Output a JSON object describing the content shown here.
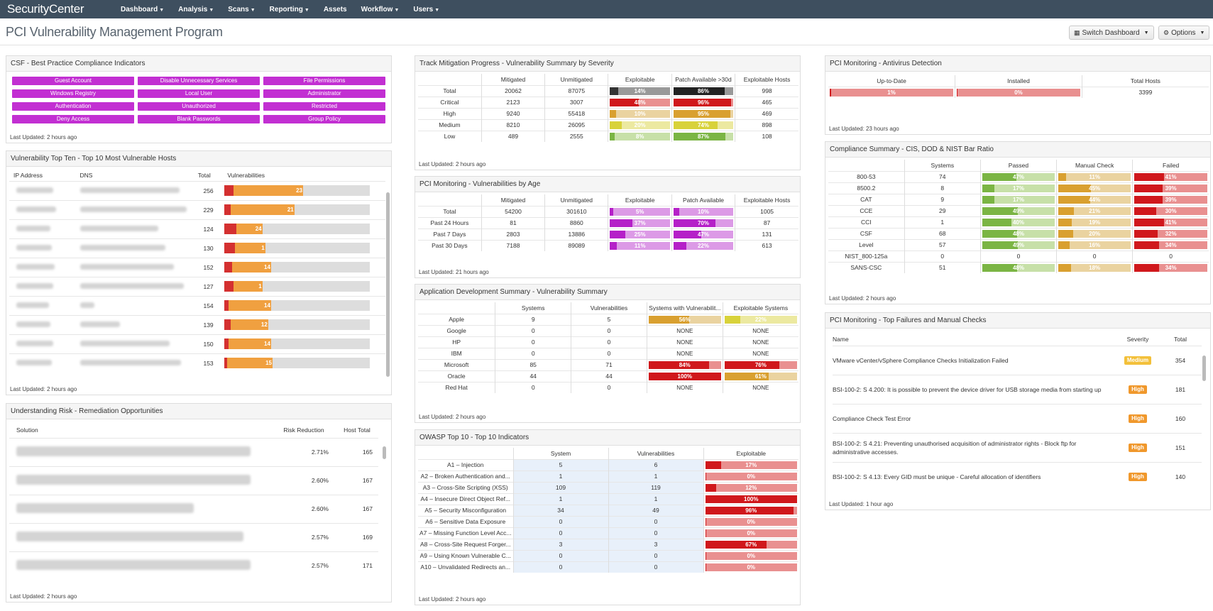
{
  "app": {
    "logo": "SecurityCenter"
  },
  "nav": [
    {
      "label": "Dashboard",
      "caret": true
    },
    {
      "label": "Analysis",
      "caret": true
    },
    {
      "label": "Scans",
      "caret": true
    },
    {
      "label": "Reporting",
      "caret": true
    },
    {
      "label": "Assets",
      "caret": false
    },
    {
      "label": "Workflow",
      "caret": true
    },
    {
      "label": "Users",
      "caret": true
    }
  ],
  "page": {
    "title": "PCI Vulnerability Management Program"
  },
  "toolbar": {
    "switch_label": "Switch Dashboard",
    "options_label": "Options"
  },
  "colors": {
    "magenta": "#c22fd2",
    "red": "#d0181c",
    "orange": "#f0a040",
    "green": "#7bb544"
  },
  "csf": {
    "title": "CSF - Best Practice Compliance Indicators",
    "buttons": [
      "Guest Account",
      "Disable Unnecessary Services",
      "File Permissions",
      "Windows Registry",
      "Local User",
      "Administrator",
      "Authentication",
      "Unauthorized",
      "Restricted",
      "Deny Access",
      "Blank Passwords",
      "Group Policy"
    ],
    "updated": "Last Updated: 2 hours ago"
  },
  "topten": {
    "title": "Vulnerability Top Ten - Top 10 Most Vulnerable Hosts",
    "headers": [
      "IP Address",
      "DNS",
      "Total",
      "Vulnerabilities"
    ],
    "rows": [
      {
        "total": "256",
        "crit": 0.06,
        "high": 0.48,
        "label": "23"
      },
      {
        "total": "229",
        "crit": 0.04,
        "high": 0.44,
        "label": "21"
      },
      {
        "total": "124",
        "crit": 0.08,
        "high": 0.18,
        "label": "24"
      },
      {
        "total": "130",
        "crit": 0.07,
        "high": 0.21,
        "label": "1"
      },
      {
        "total": "152",
        "crit": 0.05,
        "high": 0.27,
        "label": "14"
      },
      {
        "total": "127",
        "crit": 0.06,
        "high": 0.2,
        "label": "1"
      },
      {
        "total": "154",
        "crit": 0.03,
        "high": 0.29,
        "label": "14"
      },
      {
        "total": "139",
        "crit": 0.04,
        "high": 0.26,
        "label": "12"
      },
      {
        "total": "150",
        "crit": 0.03,
        "high": 0.29,
        "label": "14"
      },
      {
        "total": "153",
        "crit": 0.02,
        "high": 0.31,
        "label": "15"
      }
    ],
    "updated": "Last Updated: 2 hours ago"
  },
  "risk": {
    "title": "Understanding Risk - Remediation Opportunities",
    "headers": [
      "Solution",
      "Risk Reduction",
      "Host Total"
    ],
    "rows": [
      {
        "reduction": "2.71%",
        "hosts": "165"
      },
      {
        "reduction": "2.60%",
        "hosts": "167"
      },
      {
        "reduction": "2.60%",
        "hosts": "167"
      },
      {
        "reduction": "2.57%",
        "hosts": "169"
      },
      {
        "reduction": "2.57%",
        "hosts": "171"
      }
    ],
    "updated": "Last Updated: 2 hours ago"
  },
  "mitigation": {
    "title": "Track Mitigation Progress - Vulnerability Summary by Severity",
    "headers": [
      "",
      "Mitigated",
      "Unmitigated",
      "Exploitable",
      "Patch Available >30d",
      "Exploitable Hosts"
    ],
    "rows": [
      {
        "name": "Total",
        "mit": "20062",
        "unmit": "87075",
        "exp": {
          "v": 14,
          "l": "14%",
          "c": "#333",
          "bg": "#999"
        },
        "patch": {
          "v": 86,
          "l": "86%",
          "c": "#222",
          "bg": "#999"
        },
        "hosts": "998"
      },
      {
        "name": "Critical",
        "mit": "2123",
        "unmit": "3007",
        "exp": {
          "v": 48,
          "l": "48%",
          "c": "#d0181c",
          "bg": "#e99090"
        },
        "patch": {
          "v": 96,
          "l": "96%",
          "c": "#d0181c",
          "bg": "#e99090"
        },
        "hosts": "465"
      },
      {
        "name": "High",
        "mit": "9240",
        "unmit": "55418",
        "exp": {
          "v": 10,
          "l": "10%",
          "c": "#d9a030",
          "bg": "#ead3a0"
        },
        "patch": {
          "v": 95,
          "l": "95%",
          "c": "#d9a030",
          "bg": "#ead3a0"
        },
        "hosts": "469"
      },
      {
        "name": "Medium",
        "mit": "8210",
        "unmit": "26095",
        "exp": {
          "v": 20,
          "l": "20%",
          "c": "#d8d23a",
          "bg": "#ece9a0"
        },
        "patch": {
          "v": 74,
          "l": "74%",
          "c": "#d8d23a",
          "bg": "#ece9a0"
        },
        "hosts": "898"
      },
      {
        "name": "Low",
        "mit": "489",
        "unmit": "2555",
        "exp": {
          "v": 8,
          "l": "8%",
          "c": "#7bb544",
          "bg": "#c7e0a8"
        },
        "patch": {
          "v": 87,
          "l": "87%",
          "c": "#7bb544",
          "bg": "#c7e0a8"
        },
        "hosts": "108"
      }
    ],
    "updated": "Last Updated: 2 hours ago"
  },
  "age": {
    "title": "PCI Monitoring - Vulnerabilities by Age",
    "headers": [
      "",
      "Mitigated",
      "Unmitigated",
      "Exploitable",
      "Patch Available",
      "Exploitable Hosts"
    ],
    "rows": [
      {
        "name": "Total",
        "mit": "54200",
        "unmit": "301610",
        "exp": {
          "v": 5,
          "l": "5%"
        },
        "patch": {
          "v": 10,
          "l": "10%"
        },
        "hosts": "1005"
      },
      {
        "name": "Past 24 Hours",
        "mit": "81",
        "unmit": "8860",
        "exp": {
          "v": 37,
          "l": "37%"
        },
        "patch": {
          "v": 70,
          "l": "70%"
        },
        "hosts": "87"
      },
      {
        "name": "Past 7 Days",
        "mit": "2803",
        "unmit": "13886",
        "exp": {
          "v": 25,
          "l": "25%"
        },
        "patch": {
          "v": 47,
          "l": "47%"
        },
        "hosts": "131"
      },
      {
        "name": "Past 30 Days",
        "mit": "7188",
        "unmit": "89089",
        "exp": {
          "v": 11,
          "l": "11%"
        },
        "patch": {
          "v": 22,
          "l": "22%"
        },
        "hosts": "613"
      }
    ],
    "updated": "Last Updated: 21 hours ago"
  },
  "appdev": {
    "title": "Application Development Summary - Vulnerability Summary",
    "headers": [
      "",
      "Systems",
      "Vulnerabilities",
      "Systems with Vulnerabilit...",
      "Exploitable Systems"
    ],
    "rows": [
      {
        "name": "Apple",
        "sys": "9",
        "vul": "5",
        "sv": {
          "v": 56,
          "l": "56%",
          "c": "#d9a030",
          "bg": "#ead3a0"
        },
        "es": {
          "v": 22,
          "l": "22%",
          "c": "#d8d23a",
          "bg": "#ece9a0"
        }
      },
      {
        "name": "Google",
        "sys": "0",
        "vul": "0",
        "sv": null,
        "es": null
      },
      {
        "name": "HP",
        "sys": "0",
        "vul": "0",
        "sv": null,
        "es": null
      },
      {
        "name": "IBM",
        "sys": "0",
        "vul": "0",
        "sv": null,
        "es": null
      },
      {
        "name": "Microsoft",
        "sys": "85",
        "vul": "71",
        "sv": {
          "v": 84,
          "l": "84%",
          "c": "#d0181c",
          "bg": "#e99090"
        },
        "es": {
          "v": 76,
          "l": "76%",
          "c": "#d0181c",
          "bg": "#e99090"
        }
      },
      {
        "name": "Oracle",
        "sys": "44",
        "vul": "44",
        "sv": {
          "v": 100,
          "l": "100%",
          "c": "#d0181c",
          "bg": "#e99090"
        },
        "es": {
          "v": 61,
          "l": "61%",
          "c": "#d9a030",
          "bg": "#ead3a0"
        }
      },
      {
        "name": "Red Hat",
        "sys": "0",
        "vul": "0",
        "sv": null,
        "es": null
      }
    ],
    "none_label": "NONE",
    "updated": "Last Updated: 2 hours ago"
  },
  "owasp": {
    "title": "OWASP Top 10 - Top 10 Indicators",
    "headers": [
      "",
      "System",
      "Vulnerabilities",
      "Exploitable"
    ],
    "rows": [
      {
        "name": "A1 – Injection",
        "sys": "5",
        "vul": "6",
        "v": 17,
        "l": "17%"
      },
      {
        "name": "A2 – Broken Authentication and...",
        "sys": "1",
        "vul": "1",
        "v": 0,
        "l": "0%"
      },
      {
        "name": "A3 – Cross-Site Scripting (XSS)",
        "sys": "109",
        "vul": "119",
        "v": 12,
        "l": "12%"
      },
      {
        "name": "A4 – Insecure Direct Object Ref...",
        "sys": "1",
        "vul": "1",
        "v": 100,
        "l": "100%"
      },
      {
        "name": "A5 – Security Misconfiguration",
        "sys": "34",
        "vul": "49",
        "v": 96,
        "l": "96%"
      },
      {
        "name": "A6 – Sensitive Data Exposure",
        "sys": "0",
        "vul": "0",
        "v": 0,
        "l": "0%"
      },
      {
        "name": "A7 – Missing Function Level Acc...",
        "sys": "0",
        "vul": "0",
        "v": 0,
        "l": "0%"
      },
      {
        "name": "A8 – Cross-Site Request Forger...",
        "sys": "3",
        "vul": "3",
        "v": 67,
        "l": "67%"
      },
      {
        "name": "A9 – Using Known Vulnerable C...",
        "sys": "0",
        "vul": "0",
        "v": 0,
        "l": "0%"
      },
      {
        "name": "A10 – Unvalidated Redirects an...",
        "sys": "0",
        "vul": "0",
        "v": 0,
        "l": "0%"
      }
    ],
    "updated": "Last Updated: 2 hours ago"
  },
  "antivirus": {
    "title": "PCI Monitoring - Antivirus Detection",
    "headers": [
      "Up-to-Date",
      "Installed",
      "Total Hosts"
    ],
    "uptodate": {
      "v": 1,
      "l": "1%"
    },
    "installed": {
      "v": 0,
      "l": "0%"
    },
    "total": "3399",
    "updated": "Last Updated: 23 hours ago"
  },
  "compliance": {
    "title": "Compliance Summary - CIS, DOD & NIST Bar Ratio",
    "headers": [
      "",
      "Systems",
      "Passed",
      "Manual Check",
      "Failed"
    ],
    "rows": [
      {
        "name": "800-53",
        "sys": "74",
        "p": {
          "v": 47,
          "l": "47%"
        },
        "m": {
          "v": 11,
          "l": "11%"
        },
        "f": {
          "v": 41,
          "l": "41%"
        }
      },
      {
        "name": "8500.2",
        "sys": "8",
        "p": {
          "v": 17,
          "l": "17%"
        },
        "m": {
          "v": 45,
          "l": "45%"
        },
        "f": {
          "v": 39,
          "l": "39%"
        }
      },
      {
        "name": "CAT",
        "sys": "9",
        "p": {
          "v": 17,
          "l": "17%"
        },
        "m": {
          "v": 44,
          "l": "44%"
        },
        "f": {
          "v": 39,
          "l": "39%"
        }
      },
      {
        "name": "CCE",
        "sys": "29",
        "p": {
          "v": 49,
          "l": "49%"
        },
        "m": {
          "v": 21,
          "l": "21%"
        },
        "f": {
          "v": 30,
          "l": "30%"
        }
      },
      {
        "name": "CCI",
        "sys": "1",
        "p": {
          "v": 40,
          "l": "40%"
        },
        "m": {
          "v": 19,
          "l": "19%"
        },
        "f": {
          "v": 41,
          "l": "41%"
        }
      },
      {
        "name": "CSF",
        "sys": "68",
        "p": {
          "v": 48,
          "l": "48%"
        },
        "m": {
          "v": 20,
          "l": "20%"
        },
        "f": {
          "v": 32,
          "l": "32%"
        }
      },
      {
        "name": "Level",
        "sys": "57",
        "p": {
          "v": 49,
          "l": "49%"
        },
        "m": {
          "v": 16,
          "l": "16%"
        },
        "f": {
          "v": 34,
          "l": "34%"
        }
      },
      {
        "name": "NIST_800-125a",
        "sys": "0",
        "p": null,
        "m": null,
        "f": null,
        "zero": "0"
      },
      {
        "name": "SANS-CSC",
        "sys": "51",
        "p": {
          "v": 48,
          "l": "48%"
        },
        "m": {
          "v": 18,
          "l": "18%"
        },
        "f": {
          "v": 34,
          "l": "34%"
        }
      }
    ],
    "updated": "Last Updated: 2 hours ago"
  },
  "failures": {
    "title": "PCI Monitoring - Top Failures and Manual Checks",
    "headers": [
      "Name",
      "Severity",
      "Total"
    ],
    "rows": [
      {
        "name": "VMware vCenter/vSphere Compliance Checks Initialization Failed",
        "sev": "Medium",
        "color": "#f3c03a",
        "total": "354"
      },
      {
        "name": "BSI-100-2: S 4.200: It is possible to prevent the device driver for USB storage media from starting up",
        "sev": "High",
        "color": "#f0982c",
        "total": "181"
      },
      {
        "name": "Compliance Check Test Error",
        "sev": "High",
        "color": "#f0982c",
        "total": "160"
      },
      {
        "name": "BSI-100-2: S 4.21: Preventing unauthorised acquisition of administrator rights - Block ftp for administrative accesses.",
        "sev": "High",
        "color": "#f0982c",
        "total": "151"
      },
      {
        "name": "BSI-100-2: S 4.13: Every GID must be unique - Careful allocation of identifiers",
        "sev": "High",
        "color": "#f0982c",
        "total": "140"
      }
    ],
    "updated": "Last Updated: 1 hour ago"
  }
}
